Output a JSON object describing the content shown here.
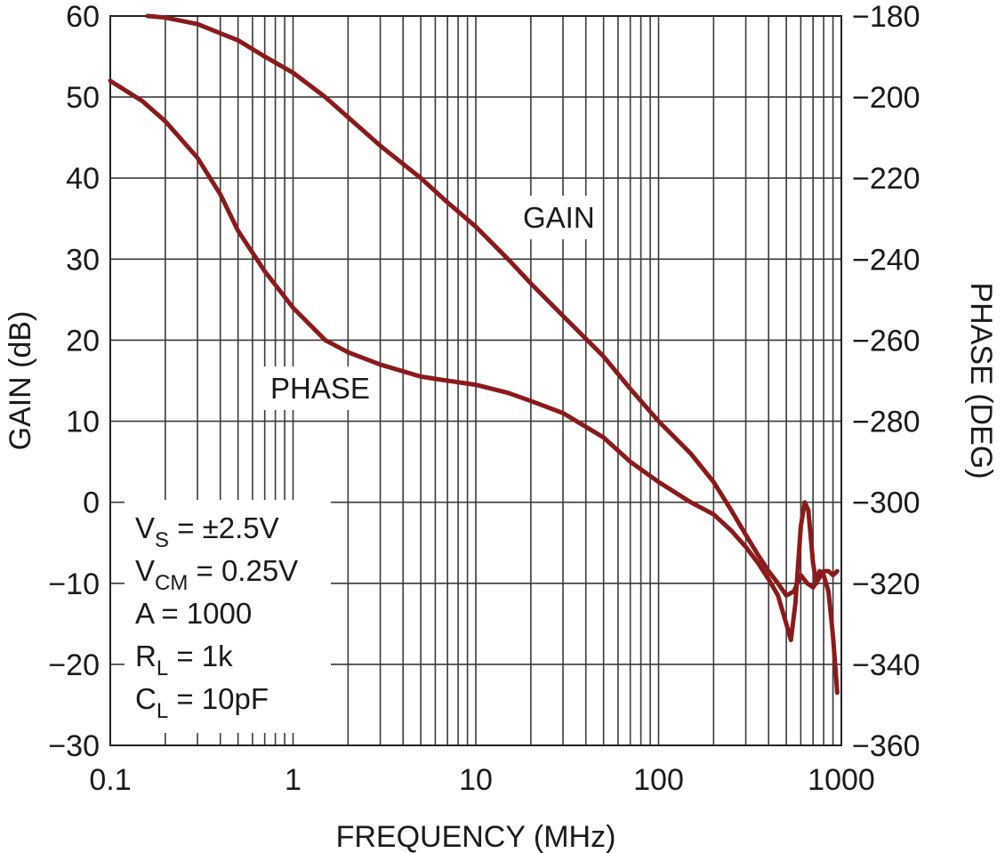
{
  "chart_data": {
    "type": "line",
    "title": "",
    "xlabel": "FREQUENCY (MHz)",
    "ylabel": "GAIN (dB)",
    "y2label": "PHASE (DEG)",
    "xscale": "log",
    "xlim": [
      0.1,
      1000
    ],
    "ylim": [
      -30,
      60
    ],
    "y2lim": [
      -360,
      -180
    ],
    "grid": true,
    "x_ticks": [
      "0.1",
      "1",
      "10",
      "100",
      "1000"
    ],
    "y_ticks": [
      "60",
      "50",
      "40",
      "30",
      "20",
      "10",
      "0",
      "−10",
      "−20",
      "−30"
    ],
    "y2_ticks": [
      "−180",
      "−200",
      "−220",
      "−240",
      "−260",
      "−280",
      "−300",
      "−320",
      "−340",
      "−360"
    ],
    "line_color": "#8b1a1a",
    "series": [
      {
        "name": "GAIN",
        "axis": "left",
        "x": [
          0.16,
          0.2,
          0.3,
          0.5,
          0.7,
          1,
          1.5,
          2,
          3,
          5,
          7,
          10,
          15,
          20,
          30,
          50,
          70,
          100,
          150,
          200,
          250,
          300,
          350,
          400,
          450,
          500,
          550,
          600,
          650,
          700,
          750,
          800,
          850,
          900,
          950
        ],
        "values": [
          60,
          59.8,
          59,
          57,
          55,
          53,
          50,
          47.5,
          44,
          40,
          37,
          34,
          30,
          27,
          23,
          18,
          14,
          10,
          6,
          2.5,
          -1,
          -4,
          -6.5,
          -8.5,
          -10,
          -11.5,
          -11,
          -9,
          -10,
          -10.5,
          -9.5,
          -8.5,
          -8.5,
          -9,
          -8.5
        ]
      },
      {
        "name": "PHASE",
        "axis": "right",
        "x": [
          0.1,
          0.15,
          0.2,
          0.3,
          0.4,
          0.5,
          0.7,
          1,
          1.5,
          2,
          3,
          5,
          7,
          10,
          15,
          20,
          30,
          50,
          70,
          100,
          150,
          200,
          250,
          300,
          350,
          400,
          450,
          500,
          530,
          560,
          600,
          630,
          660,
          700,
          730,
          760,
          800,
          850,
          900,
          950
        ],
        "values": [
          -196,
          -201,
          -206,
          -215,
          -224,
          -233,
          -243,
          -252,
          -260,
          -263,
          -266,
          -269,
          -270,
          -271,
          -273,
          -275,
          -278,
          -284,
          -290,
          -295,
          -300,
          -303,
          -307,
          -311,
          -315,
          -319,
          -323,
          -330,
          -334,
          -325,
          -306,
          -300,
          -302,
          -315,
          -320,
          -317,
          -318,
          -322,
          -333,
          -347
        ]
      }
    ]
  },
  "labels": {
    "gain": "GAIN",
    "phase": "PHASE"
  },
  "conditions": [
    {
      "main": "V",
      "sub": "S",
      "rest": " = ±2.5V"
    },
    {
      "main": "V",
      "sub": "CM",
      "rest": " = 0.25V"
    },
    {
      "main": "A = 1000",
      "sub": "",
      "rest": ""
    },
    {
      "main": "R",
      "sub": "L",
      "rest": " = 1k"
    },
    {
      "main": "C",
      "sub": "L",
      "rest": " = 10pF"
    }
  ]
}
